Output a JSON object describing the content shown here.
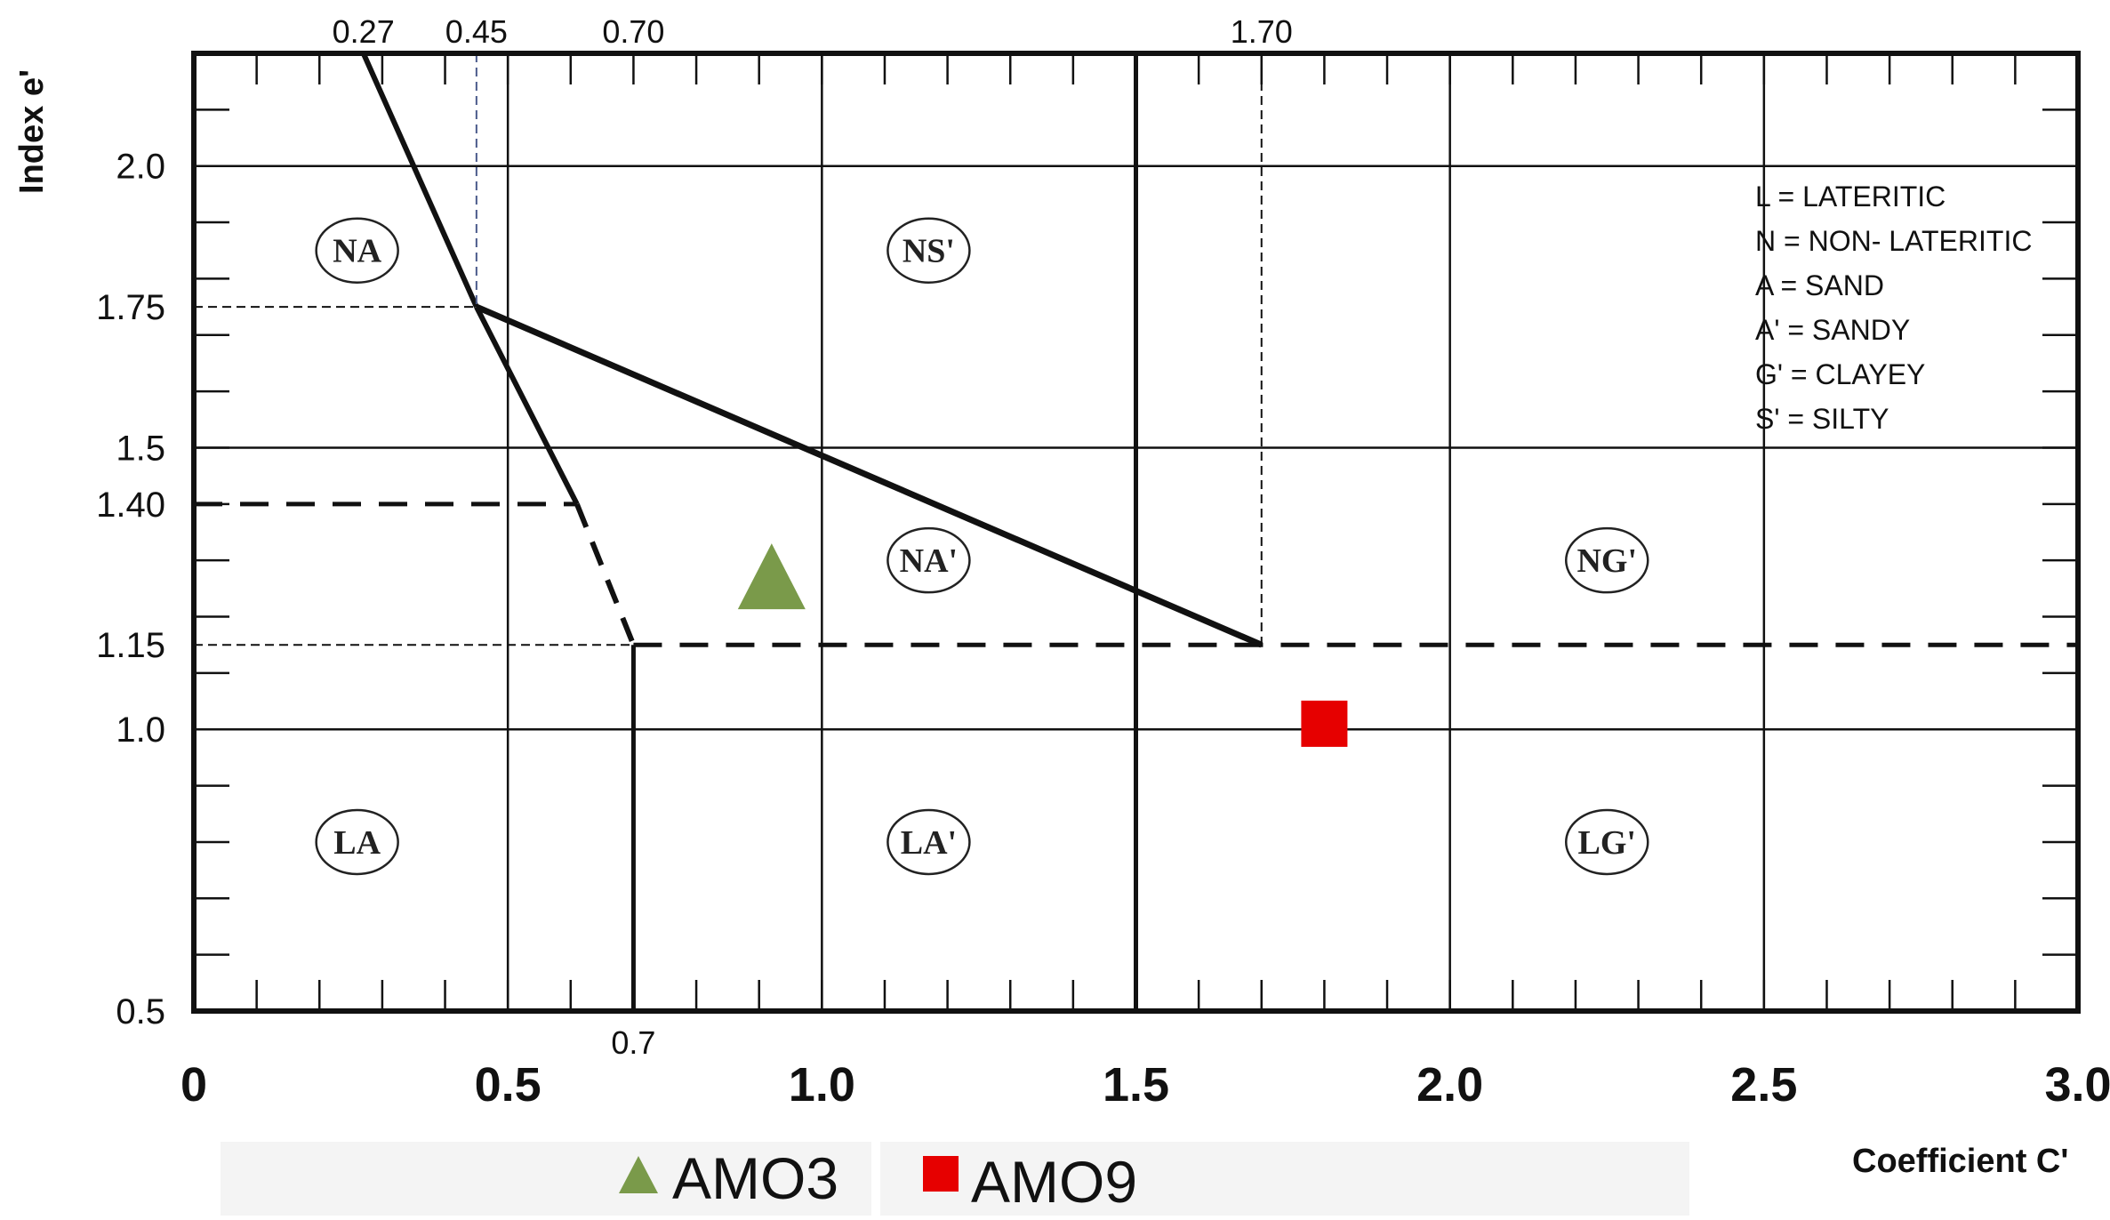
{
  "chart_data": {
    "type": "scatter",
    "title": "",
    "xlabel": "Coefficient C'",
    "ylabel": "Index e'",
    "xlim": [
      0,
      3.0
    ],
    "ylim": [
      0.5,
      2.2
    ],
    "x_ticks": [
      "0",
      "0.5",
      "1.0",
      "1.5",
      "2.0",
      "2.5",
      "3.0"
    ],
    "x_tick_values": [
      0,
      0.5,
      1.0,
      1.5,
      2.0,
      2.5,
      3.0
    ],
    "y_ticks": [
      "2.0",
      "1.75",
      "1.5",
      "1.40",
      "1.15",
      "1.0",
      "0.5"
    ],
    "y_tick_values": [
      2.0,
      1.75,
      1.5,
      1.4,
      1.15,
      1.0,
      0.5
    ],
    "top_ticks": [
      "0.27",
      "0.45",
      "0.70",
      "1.70"
    ],
    "top_tick_values": [
      0.27,
      0.45,
      0.7,
      1.7
    ],
    "bottom_extra_label": "0.7",
    "bottom_extra_value": 0.7,
    "zones": [
      {
        "label": "NA",
        "x": 0.26,
        "y": 1.85
      },
      {
        "label": "NS'",
        "x": 1.17,
        "y": 1.85
      },
      {
        "label": "NA'",
        "x": 1.17,
        "y": 1.3
      },
      {
        "label": "NG'",
        "x": 2.25,
        "y": 1.3
      },
      {
        "label": "LA",
        "x": 0.26,
        "y": 0.8
      },
      {
        "label": "LA'",
        "x": 1.17,
        "y": 0.8
      },
      {
        "label": "LG'",
        "x": 2.25,
        "y": 0.8
      }
    ],
    "key": [
      "L = LATERITIC",
      "N = NON- LATERITIC",
      "A = SAND",
      "A' = SANDY",
      "G' = CLAYEY",
      "S' = SILTY"
    ],
    "series": [
      {
        "name": "AMO3",
        "marker": "triangle",
        "color": "#7a9a4a",
        "x": [
          0.92
        ],
        "y": [
          1.27
        ]
      },
      {
        "name": "AMO9",
        "marker": "square",
        "color": "#e60000",
        "x": [
          1.8
        ],
        "y": [
          1.01
        ]
      }
    ],
    "legend_position": "bottom"
  }
}
